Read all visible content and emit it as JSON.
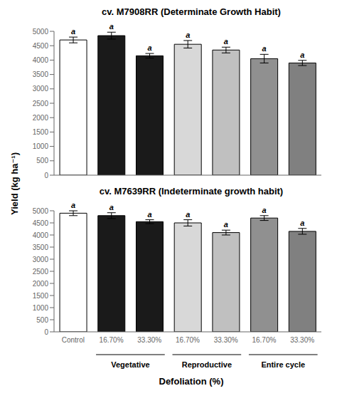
{
  "chart_data": [
    {
      "type": "bar",
      "title": "cv. M7908RR (Determinate Growth Habit)",
      "ylabel": "Yield (kg ha⁻¹)",
      "categories": [
        null,
        null,
        null,
        null,
        null,
        null,
        null
      ],
      "values": [
        4700,
        4850,
        4150,
        4550,
        4350,
        4050,
        3900
      ],
      "errors": [
        100,
        120,
        80,
        130,
        100,
        150,
        90
      ],
      "annotations": [
        "a",
        "a",
        "a",
        "a",
        "a",
        "a",
        "a"
      ],
      "colors": [
        "#ffffff",
        "#1a1a1a",
        "#1a1a1a",
        "#d8d8d8",
        "#c0c0c0",
        "#909090",
        "#808080"
      ],
      "ylim": [
        0,
        5000
      ],
      "yticks": [
        0,
        500,
        1000,
        1500,
        2000,
        2500,
        3000,
        3500,
        4000,
        4500,
        5000
      ],
      "grid": false
    },
    {
      "type": "bar",
      "title": "cv. M7639RR (Indeterminate growth habit)",
      "xlabel": "Defoliation (%)",
      "categories": [
        "Control",
        "16.70%",
        "33.30%",
        "16.70%",
        "33.30%",
        "16.70%",
        "33.30%"
      ],
      "values": [
        4900,
        4800,
        4550,
        4500,
        4100,
        4700,
        4150
      ],
      "errors": [
        100,
        120,
        80,
        130,
        100,
        100,
        120
      ],
      "annotations": [
        "a",
        "a",
        "a",
        "a",
        "a",
        "a",
        "a"
      ],
      "colors": [
        "#ffffff",
        "#1a1a1a",
        "#1a1a1a",
        "#d8d8d8",
        "#c0c0c0",
        "#909090",
        "#808080"
      ],
      "ylim": [
        0,
        5000
      ],
      "yticks": [
        0,
        500,
        1000,
        1500,
        2000,
        2500,
        3000,
        3500,
        4000,
        4500,
        5000
      ],
      "grid": false,
      "groups": [
        {
          "label": "Vegetative",
          "start": 1,
          "end": 2
        },
        {
          "label": "Reproductive",
          "start": 3,
          "end": 4
        },
        {
          "label": "Entire cycle",
          "start": 5,
          "end": 6
        }
      ]
    }
  ]
}
